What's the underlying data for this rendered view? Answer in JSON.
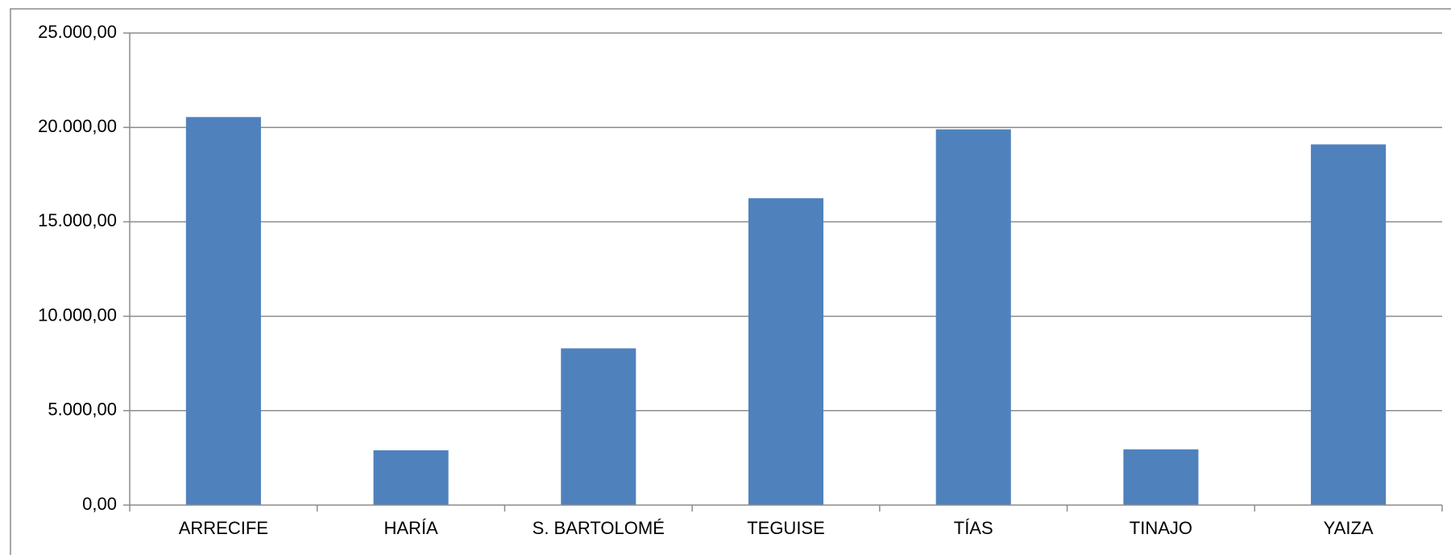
{
  "chart_data": {
    "type": "bar",
    "categories": [
      "ARRECIFE",
      "HARÍA",
      "S. BARTOLOMÉ",
      "TEGUISE",
      "TÍAS",
      "TINAJO",
      "YAIZA"
    ],
    "series": [
      {
        "values": [
          20550,
          2900,
          8300,
          16250,
          19900,
          2950,
          19100
        ],
        "color": "#4f81bd"
      }
    ],
    "y_ticks": [
      "0,00",
      "5.000,00",
      "10.000,00",
      "15.000,00",
      "20.000,00",
      "25.000,00"
    ],
    "ylim": [
      0,
      25000
    ],
    "y_step": 5000,
    "grid": true,
    "legend": "none",
    "title": "",
    "xlabel": "",
    "ylabel": ""
  }
}
